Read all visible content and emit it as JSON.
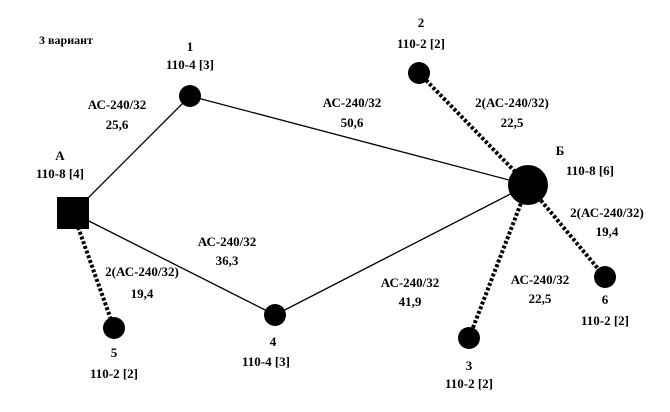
{
  "title": "3 вариант",
  "nodes": [
    {
      "id": "А",
      "rating": "110-8 [4]"
    },
    {
      "id": "1",
      "rating": "110-4 [3]"
    },
    {
      "id": "2",
      "rating": "110-2 [2]"
    },
    {
      "id": "Б",
      "rating": "110-8 [6]"
    },
    {
      "id": "3",
      "rating": "110-2 [2]"
    },
    {
      "id": "4",
      "rating": "110-4 [3]"
    },
    {
      "id": "5",
      "rating": "110-2 [2]"
    },
    {
      "id": "6",
      "rating": "110-2 [2]"
    }
  ],
  "edges": [
    {
      "wire": "АС-240/32",
      "length": "25,6"
    },
    {
      "wire": "АС-240/32",
      "length": "50,6"
    },
    {
      "wire": "2(АС-240/32)",
      "length": "22,5"
    },
    {
      "wire": "АС-240/32",
      "length": "36,3"
    },
    {
      "wire": "АС-240/32",
      "length": "41,9"
    },
    {
      "wire": "2(АС-240/32)",
      "length": "19,4"
    },
    {
      "wire": "АС-240/32",
      "length": "22,5"
    },
    {
      "wire": "2(АС-240/32)",
      "length": "19,4"
    }
  ]
}
